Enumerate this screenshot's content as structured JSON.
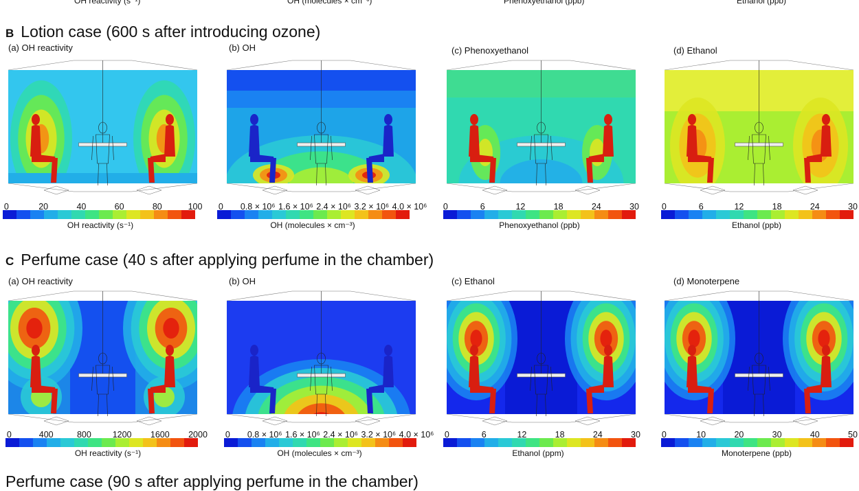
{
  "prev_row": {
    "labels": [
      "OH reactivity (s⁻¹)",
      "OH (molecules × cm⁻³)",
      "Phenoxyethanol (ppb)",
      "Ethanol (ppb)"
    ]
  },
  "sections": [
    {
      "letter": "B",
      "title": "Lotion case (600 s after introducing ozone)",
      "panels": [
        {
          "label": "(a) OH reactivity",
          "ticks": [
            "0",
            "20",
            "40",
            "60",
            "80",
            "100"
          ],
          "unit": "OH reactivity (s⁻¹)",
          "bg": "#33c6ee",
          "pattern": "lotion-a"
        },
        {
          "label": "(b) OH",
          "ticks": [
            "0",
            "0.8 × 10⁶",
            "1.6 × 10⁶",
            "2.4 × 10⁶",
            "3.2 × 10⁶",
            "4.0 × 10⁶"
          ],
          "unit": "OH (molecules × cm⁻³)",
          "bg": "#1ea4e8",
          "pattern": "lotion-b"
        },
        {
          "label": "(c) Phenoxyethanol",
          "ticks": [
            "0",
            "6",
            "12",
            "18",
            "24",
            "30"
          ],
          "unit": "Phenoxyethanol (ppb)",
          "bg": "#3fdc92",
          "pattern": "lotion-c"
        },
        {
          "label": "(d) Ethanol",
          "ticks": [
            "0",
            "6",
            "12",
            "18",
            "24",
            "30"
          ],
          "unit": "Ethanol (ppb)",
          "bg": "#e3ee3a",
          "pattern": "lotion-d"
        }
      ]
    },
    {
      "letter": "C",
      "title": "Perfume case (40 s after applying perfume in the chamber)",
      "panels": [
        {
          "label": "(a) OH reactivity",
          "ticks": [
            "0",
            "400",
            "800",
            "1200",
            "1600",
            "2000"
          ],
          "unit": "OH reactivity (s⁻¹)",
          "bg": "#1c86e8",
          "pattern": "perfume-a"
        },
        {
          "label": "(b) OH",
          "ticks": [
            "0",
            "0.8 × 10⁶",
            "1.6 × 10⁶",
            "2.4 × 10⁶",
            "3.2 × 10⁶",
            "4.0 × 10⁶"
          ],
          "unit": "OH (molecules × cm⁻³)",
          "bg": "#1c3cf0",
          "pattern": "perfume-b"
        },
        {
          "label": "(c) Ethanol",
          "ticks": [
            "0",
            "6",
            "12",
            "18",
            "24",
            "30"
          ],
          "unit": "Ethanol (ppm)",
          "bg": "#1428ec",
          "pattern": "perfume-c"
        },
        {
          "label": "(d) Monoterpene",
          "ticks": [
            "0",
            "10",
            "20",
            "30",
            "40",
            "50"
          ],
          "unit": "Monoterpene (ppb)",
          "bg": "#1428ec",
          "pattern": "perfume-d"
        }
      ]
    }
  ],
  "next_row": {
    "title": "Perfume case (90 s after applying perfume in the chamber)"
  },
  "colors": [
    "#0a1bd6",
    "#1450ef",
    "#1a82f2",
    "#22aee8",
    "#2ac9d6",
    "#30d9b0",
    "#3ee483",
    "#6cea4e",
    "#aaee32",
    "#dde622",
    "#f3c21a",
    "#f58c14",
    "#f2540f",
    "#e21b0d"
  ]
}
